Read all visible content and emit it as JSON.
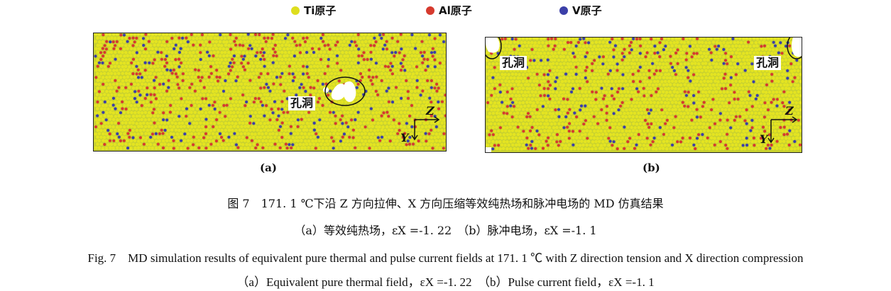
{
  "legend": [
    {
      "label": "Ti原子",
      "color": "#dede1e"
    },
    {
      "label": "Al原子",
      "color": "#d63a2e"
    },
    {
      "label": "V原子",
      "color": "#3b3fa8"
    }
  ],
  "panel_a": {
    "label": "(a)",
    "hole_label": "孔洞",
    "axis_z": "Z",
    "axis_y": "Y"
  },
  "panel_b": {
    "label": "(b)",
    "hole_label_left": "孔洞",
    "hole_label_right": "孔洞",
    "axis_z": "Z",
    "axis_y": "Y"
  },
  "colors": {
    "background": "#c8d130",
    "ti": "#e4e421",
    "al": "#d63a2e",
    "v": "#3b3fa8",
    "hole": "#ffffff"
  },
  "captions": {
    "zh_title": "图 7　171. 1 ℃下沿 Z 方向拉伸、X 方向压缩等效纯热场和脉冲电场的 MD 仿真结果",
    "zh_sub": "（a）等效纯热场，εX =-1. 22　（b）脉冲电场，εX =-1. 1",
    "en_title": "Fig. 7　MD simulation results of equivalent pure thermal and pulse current fields at 171. 1 ℃ with Z direction tension and X direction compression",
    "en_sub": "（a）Equivalent pure thermal field，εX =-1. 22　（b）Pulse current field，εX =-1. 1"
  }
}
